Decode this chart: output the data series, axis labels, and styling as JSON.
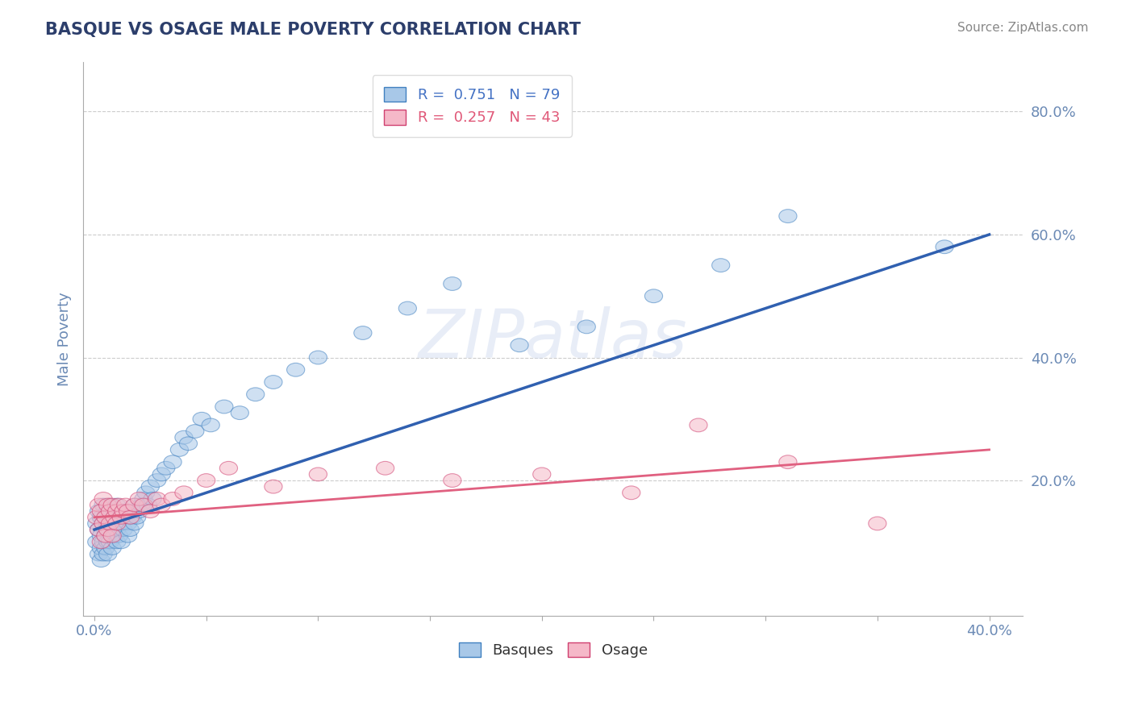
{
  "title": "BASQUE VS OSAGE MALE POVERTY CORRELATION CHART",
  "source": "Source: ZipAtlas.com",
  "ylabel": "Male Poverty",
  "xlim": [
    -0.005,
    0.415
  ],
  "ylim": [
    -0.02,
    0.88
  ],
  "x_ticks": [
    0.0,
    0.05,
    0.1,
    0.15,
    0.2,
    0.25,
    0.3,
    0.35,
    0.4
  ],
  "x_tick_labels": [
    "0.0%",
    "",
    "",
    "",
    "",
    "",
    "",
    "",
    "40.0%"
  ],
  "y_tick_positions": [
    0.0,
    0.2,
    0.4,
    0.6,
    0.8
  ],
  "y_tick_labels": [
    "",
    "20.0%",
    "40.0%",
    "60.0%",
    "80.0%"
  ],
  "basque_R": 0.751,
  "basque_N": 79,
  "osage_R": 0.257,
  "osage_N": 43,
  "blue_color": "#a8c8e8",
  "pink_color": "#f5b8c8",
  "blue_line_color": "#3060b0",
  "pink_line_color": "#e06080",
  "blue_edge_color": "#4080c0",
  "pink_edge_color": "#d04070",
  "label_color": "#4472c4",
  "pink_label_color": "#e05878",
  "title_color": "#2c3e6b",
  "axis_label_color": "#6b8ab5",
  "watermark": "ZIPatlas",
  "blue_trend_x0": 0.0,
  "blue_trend_y0": 0.12,
  "blue_trend_x1": 0.4,
  "blue_trend_y1": 0.6,
  "pink_trend_x0": 0.0,
  "pink_trend_y0": 0.14,
  "pink_trend_x1": 0.4,
  "pink_trend_y1": 0.25,
  "basque_x": [
    0.001,
    0.001,
    0.002,
    0.002,
    0.002,
    0.003,
    0.003,
    0.003,
    0.003,
    0.004,
    0.004,
    0.004,
    0.004,
    0.005,
    0.005,
    0.005,
    0.005,
    0.006,
    0.006,
    0.006,
    0.006,
    0.007,
    0.007,
    0.007,
    0.008,
    0.008,
    0.008,
    0.009,
    0.009,
    0.01,
    0.01,
    0.01,
    0.011,
    0.011,
    0.012,
    0.012,
    0.013,
    0.013,
    0.014,
    0.015,
    0.015,
    0.016,
    0.016,
    0.017,
    0.018,
    0.018,
    0.019,
    0.02,
    0.021,
    0.022,
    0.023,
    0.024,
    0.025,
    0.026,
    0.028,
    0.03,
    0.032,
    0.035,
    0.038,
    0.04,
    0.042,
    0.045,
    0.048,
    0.052,
    0.058,
    0.065,
    0.072,
    0.08,
    0.09,
    0.1,
    0.12,
    0.14,
    0.16,
    0.19,
    0.22,
    0.25,
    0.28,
    0.31,
    0.38
  ],
  "basque_y": [
    0.13,
    0.1,
    0.12,
    0.08,
    0.15,
    0.11,
    0.09,
    0.14,
    0.07,
    0.13,
    0.1,
    0.16,
    0.08,
    0.12,
    0.14,
    0.09,
    0.11,
    0.13,
    0.1,
    0.15,
    0.08,
    0.12,
    0.16,
    0.1,
    0.13,
    0.09,
    0.15,
    0.11,
    0.14,
    0.12,
    0.16,
    0.1,
    0.14,
    0.11,
    0.13,
    0.1,
    0.15,
    0.12,
    0.14,
    0.13,
    0.11,
    0.15,
    0.12,
    0.14,
    0.13,
    0.16,
    0.14,
    0.15,
    0.16,
    0.17,
    0.18,
    0.16,
    0.19,
    0.17,
    0.2,
    0.21,
    0.22,
    0.23,
    0.25,
    0.27,
    0.26,
    0.28,
    0.3,
    0.29,
    0.32,
    0.31,
    0.34,
    0.36,
    0.38,
    0.4,
    0.44,
    0.48,
    0.52,
    0.42,
    0.45,
    0.5,
    0.55,
    0.63,
    0.58
  ],
  "osage_x": [
    0.001,
    0.002,
    0.002,
    0.003,
    0.003,
    0.004,
    0.004,
    0.005,
    0.005,
    0.006,
    0.006,
    0.007,
    0.007,
    0.008,
    0.008,
    0.009,
    0.01,
    0.01,
    0.011,
    0.012,
    0.013,
    0.014,
    0.015,
    0.016,
    0.018,
    0.02,
    0.022,
    0.025,
    0.028,
    0.03,
    0.035,
    0.04,
    0.05,
    0.06,
    0.08,
    0.1,
    0.13,
    0.16,
    0.2,
    0.24,
    0.27,
    0.31,
    0.35
  ],
  "osage_y": [
    0.14,
    0.16,
    0.12,
    0.15,
    0.1,
    0.13,
    0.17,
    0.14,
    0.11,
    0.16,
    0.12,
    0.15,
    0.13,
    0.16,
    0.11,
    0.14,
    0.15,
    0.13,
    0.16,
    0.14,
    0.15,
    0.16,
    0.15,
    0.14,
    0.16,
    0.17,
    0.16,
    0.15,
    0.17,
    0.16,
    0.17,
    0.18,
    0.2,
    0.22,
    0.19,
    0.21,
    0.22,
    0.2,
    0.21,
    0.18,
    0.29,
    0.23,
    0.13
  ]
}
